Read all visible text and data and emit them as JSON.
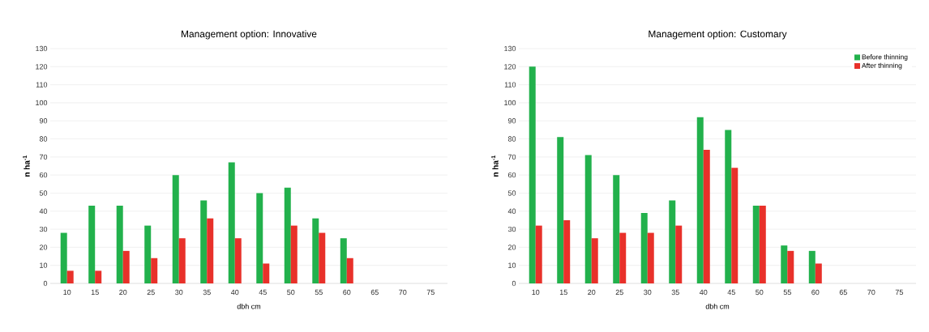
{
  "chart_data": [
    {
      "type": "bar",
      "title": "Management option: Innovative",
      "xlabel": "dbh cm",
      "ylabel": "n ha$^{-1}$",
      "categories": [
        "10",
        "15",
        "20",
        "25",
        "30",
        "35",
        "40",
        "45",
        "50",
        "55",
        "60",
        "65",
        "70",
        "75"
      ],
      "series": [
        {
          "color": "#22b14c",
          "values": [
            28,
            43,
            43,
            32,
            60,
            46,
            67,
            50,
            53,
            36,
            25,
            null,
            null,
            null
          ]
        },
        {
          "color": "#e8312a",
          "values": [
            7,
            7,
            18,
            14,
            25,
            36,
            25,
            11,
            32,
            28,
            14,
            null,
            null,
            null
          ]
        }
      ],
      "ylim": [
        0,
        130
      ],
      "yticks": [
        0,
        10,
        20,
        30,
        40,
        50,
        60,
        70,
        80,
        90,
        100,
        110,
        120,
        130
      ],
      "grid": "y"
    },
    {
      "type": "bar",
      "title": "Management option: Customary",
      "xlabel": "dbh cm",
      "ylabel": "n ha$^{-1}$",
      "categories": [
        "10",
        "15",
        "20",
        "25",
        "30",
        "35",
        "40",
        "45",
        "50",
        "55",
        "60",
        "65",
        "70",
        "75"
      ],
      "series": [
        {
          "name": "Before thinning",
          "color": "#22b14c",
          "values": [
            120,
            81,
            71,
            60,
            39,
            46,
            92,
            85,
            43,
            21,
            18,
            null,
            null,
            null
          ]
        },
        {
          "name": "After thinning",
          "color": "#e8312a",
          "values": [
            32,
            35,
            25,
            28,
            28,
            32,
            74,
            64,
            43,
            18,
            11,
            null,
            null,
            null
          ]
        }
      ],
      "ylim": [
        0,
        130
      ],
      "yticks": [
        0,
        10,
        20,
        30,
        40,
        50,
        60,
        70,
        80,
        90,
        100,
        110,
        120,
        130
      ],
      "grid": "y",
      "legend": "top right"
    }
  ]
}
